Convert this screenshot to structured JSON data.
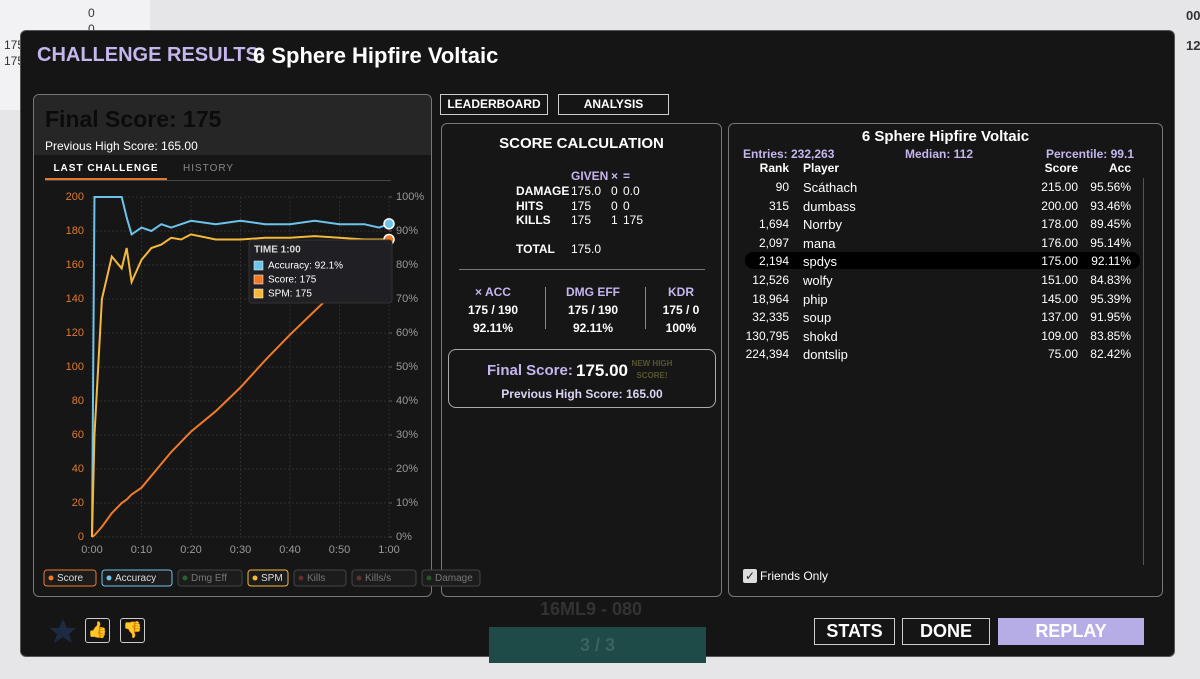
{
  "background": {
    "top_left": [
      "0",
      "0",
      "175",
      "175"
    ],
    "top_right": [
      "00",
      "12"
    ],
    "scenario_code": "16ML9 - 080",
    "progress": "3 / 3"
  },
  "header": {
    "label": "CHALLENGE RESULTS:",
    "title": "6 Sphere Hipfire Voltaic"
  },
  "summary": {
    "final_score": "Final Score: 175",
    "previous_high": "Previous High Score: 165.00",
    "tabs": [
      "LAST CHALLENGE",
      "HISTORY"
    ]
  },
  "chart": {
    "type": "line",
    "x": [
      0,
      0.5,
      2,
      4,
      6,
      7,
      8,
      10,
      12,
      14,
      16,
      18,
      20,
      25,
      30,
      35,
      40,
      45,
      50,
      55,
      58,
      60
    ],
    "series": [
      {
        "name": "Score",
        "color": "#f07a2a",
        "visible": true,
        "values": [
          0,
          1,
          6,
          14,
          20,
          22,
          25,
          29,
          36,
          43,
          50,
          56,
          62,
          74,
          88,
          104,
          119,
          133,
          147,
          161,
          170,
          175
        ]
      },
      {
        "name": "Accuracy",
        "color": "#6ec3ea",
        "visible": true,
        "axis": "y2",
        "values": [
          0,
          100,
          100,
          100,
          100,
          94,
          89,
          91,
          90,
          92,
          91,
          92,
          93,
          92,
          93,
          92,
          92,
          93,
          92,
          92,
          91,
          92.1
        ]
      },
      {
        "name": "Dmg Eff",
        "color": "#3aa24a",
        "visible": false
      },
      {
        "name": "SPM",
        "color": "#f5b93a",
        "visible": true,
        "values": [
          0,
          60,
          140,
          165,
          158,
          170,
          150,
          163,
          170,
          172,
          176,
          175,
          178,
          175,
          175,
          176,
          176,
          177,
          176,
          175,
          175,
          175
        ]
      },
      {
        "name": "Kills",
        "color": "#b03a3a",
        "visible": false
      },
      {
        "name": "Kills/s",
        "color": "#a04848",
        "visible": false
      },
      {
        "name": "Damage",
        "color": "#2e8b3a",
        "visible": false
      }
    ],
    "xlim": [
      0,
      60
    ],
    "xticks": [
      {
        "value": 0,
        "label": "0:00"
      },
      {
        "value": 10,
        "label": "0:10"
      },
      {
        "value": 20,
        "label": "0:20"
      },
      {
        "value": 30,
        "label": "0:30"
      },
      {
        "value": 40,
        "label": "0:40"
      },
      {
        "value": 50,
        "label": "0:50"
      },
      {
        "value": 60,
        "label": "1:00"
      }
    ],
    "ylim": [
      0,
      200
    ],
    "yticks": [
      0,
      20,
      40,
      60,
      80,
      100,
      120,
      140,
      160,
      180,
      200
    ],
    "y2lim": [
      0,
      100
    ],
    "y2ticks": [
      {
        "value": 0,
        "label": "0%"
      },
      {
        "value": 10,
        "label": "10%"
      },
      {
        "value": 20,
        "label": "20%"
      },
      {
        "value": 30,
        "label": "30%"
      },
      {
        "value": 40,
        "label": "40%"
      },
      {
        "value": 50,
        "label": "50%"
      },
      {
        "value": 60,
        "label": "60%"
      },
      {
        "value": 70,
        "label": "70%"
      },
      {
        "value": 80,
        "label": "80%"
      },
      {
        "value": 90,
        "label": "90%"
      },
      {
        "value": 100,
        "label": "100%"
      }
    ],
    "grid": true,
    "tooltip": {
      "title": "TIME 1:00",
      "lines": [
        "Accuracy: 92.1%",
        "Score: 175",
        "SPM: 175"
      ]
    }
  },
  "tabs": [
    "LEADERBOARD",
    "ANALYSIS"
  ],
  "score_calc": {
    "title": "SCORE CALCULATION",
    "columns": [
      "GIVEN",
      "×",
      "="
    ],
    "rows": [
      [
        "DAMAGE",
        "175.0",
        "0",
        "0.0"
      ],
      [
        "HITS",
        "175",
        "0",
        "0"
      ],
      [
        "KILLS",
        "175",
        "1",
        "175"
      ]
    ],
    "total": [
      "TOTAL",
      "175.0"
    ],
    "factors": [
      [
        "× ACC",
        "175 / 190",
        "92.11%"
      ],
      [
        "DMG EFF",
        "175 / 190",
        "92.11%"
      ],
      [
        "KDR",
        "175 / 0",
        "100%"
      ]
    ],
    "final_label": "Final Score:",
    "final_value": "175.00",
    "new_high": "NEW HIGH SCORE!",
    "previous_high": "Previous High Score: 165.00"
  },
  "leaderboard": {
    "title": "6 Sphere Hipfire Voltaic",
    "entries": "Entries: 232,263",
    "median": "Median: 112",
    "percentile": "Percentile: 99.1",
    "columns": [
      "Rank",
      "Player",
      "Score",
      "Acc"
    ],
    "rows": [
      [
        "90",
        "Scáthach",
        "215.00",
        "95.56%"
      ],
      [
        "315",
        "dumbass",
        "200.00",
        "93.46%"
      ],
      [
        "1,694",
        "Norrby",
        "178.00",
        "89.45%"
      ],
      [
        "2,097",
        "mana",
        "176.00",
        "95.14%"
      ],
      [
        "2,194",
        "spdys",
        "175.00",
        "92.11%"
      ],
      [
        "12,526",
        "wolfy",
        "151.00",
        "84.83%"
      ],
      [
        "18,964",
        "phip",
        "145.00",
        "95.39%"
      ],
      [
        "32,335",
        "soup",
        "137.00",
        "91.95%"
      ],
      [
        "130,795",
        "shokd",
        "109.00",
        "83.85%"
      ],
      [
        "224,394",
        "dontslip",
        "75.00",
        "82.42%"
      ]
    ],
    "highlight_row": 4,
    "friends_only": "Friends Only",
    "friends_checked": true
  },
  "footer": {
    "buttons": [
      "STATS",
      "DONE",
      "REPLAY"
    ]
  }
}
